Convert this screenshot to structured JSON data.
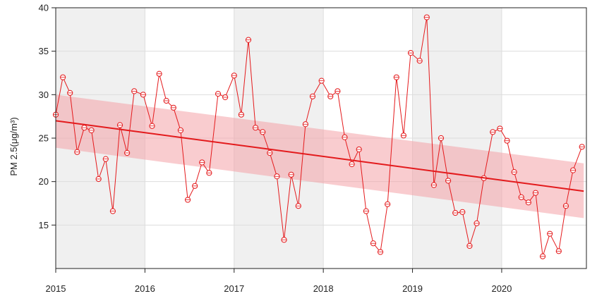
{
  "chart_data": {
    "type": "line",
    "ylabel": "PM 2.5(μg/m³)",
    "xlim": [
      2015.0,
      2020.95
    ],
    "ylim": [
      10,
      40
    ],
    "xticks": [
      "2015",
      "2016",
      "2017",
      "2018",
      "2019",
      "2020"
    ],
    "yticks": [
      "15",
      "20",
      "25",
      "30",
      "35",
      "40"
    ],
    "grid": true,
    "shaded_year_bands": [
      [
        2015,
        2016
      ],
      [
        2017,
        2018
      ],
      [
        2019,
        2020
      ]
    ],
    "series": [
      {
        "values": [
          [
            2015.0,
            27.7
          ],
          [
            2015.08,
            32.0
          ],
          [
            2015.16,
            30.2
          ],
          [
            2015.24,
            23.4
          ],
          [
            2015.32,
            26.2
          ],
          [
            2015.4,
            25.9
          ],
          [
            2015.48,
            20.3
          ],
          [
            2015.56,
            22.6
          ],
          [
            2015.64,
            16.6
          ],
          [
            2015.72,
            26.5
          ],
          [
            2015.8,
            23.3
          ],
          [
            2015.88,
            30.4
          ],
          [
            2015.98,
            30.0
          ],
          [
            2016.08,
            26.4
          ],
          [
            2016.16,
            32.4
          ],
          [
            2016.24,
            29.3
          ],
          [
            2016.32,
            28.5
          ],
          [
            2016.4,
            25.9
          ],
          [
            2016.48,
            17.9
          ],
          [
            2016.56,
            19.5
          ],
          [
            2016.64,
            22.2
          ],
          [
            2016.72,
            21.0
          ],
          [
            2016.82,
            30.1
          ],
          [
            2016.9,
            29.7
          ],
          [
            2017.0,
            32.2
          ],
          [
            2017.08,
            27.7
          ],
          [
            2017.16,
            36.3
          ],
          [
            2017.24,
            26.2
          ],
          [
            2017.32,
            25.7
          ],
          [
            2017.4,
            23.3
          ],
          [
            2017.48,
            20.6
          ],
          [
            2017.56,
            13.3
          ],
          [
            2017.64,
            20.8
          ],
          [
            2017.72,
            17.2
          ],
          [
            2017.8,
            26.6
          ],
          [
            2017.88,
            29.8
          ],
          [
            2017.98,
            31.6
          ],
          [
            2018.08,
            29.8
          ],
          [
            2018.16,
            30.4
          ],
          [
            2018.24,
            25.1
          ],
          [
            2018.32,
            22.0
          ],
          [
            2018.4,
            23.7
          ],
          [
            2018.48,
            16.6
          ],
          [
            2018.56,
            12.9
          ],
          [
            2018.64,
            11.9
          ],
          [
            2018.72,
            17.4
          ],
          [
            2018.82,
            32.0
          ],
          [
            2018.9,
            25.3
          ],
          [
            2018.98,
            34.8
          ],
          [
            2019.08,
            33.9
          ],
          [
            2019.16,
            38.9
          ],
          [
            2019.24,
            19.6
          ],
          [
            2019.32,
            25.0
          ],
          [
            2019.4,
            20.1
          ],
          [
            2019.48,
            16.4
          ],
          [
            2019.56,
            16.5
          ],
          [
            2019.64,
            12.6
          ],
          [
            2019.72,
            15.2
          ],
          [
            2019.8,
            20.4
          ],
          [
            2019.9,
            25.7
          ],
          [
            2019.98,
            26.1
          ],
          [
            2020.06,
            24.7
          ],
          [
            2020.14,
            21.1
          ],
          [
            2020.22,
            18.2
          ],
          [
            2020.3,
            17.6
          ],
          [
            2020.38,
            18.7
          ],
          [
            2020.46,
            11.4
          ],
          [
            2020.54,
            14.0
          ],
          [
            2020.64,
            12.0
          ],
          [
            2020.72,
            17.2
          ],
          [
            2020.8,
            21.3
          ],
          [
            2020.9,
            24.0
          ]
        ]
      }
    ],
    "trend": {
      "x": [
        2015.0,
        2020.92
      ],
      "fit": [
        27.0,
        18.9
      ],
      "upper": [
        30.0,
        22.1
      ],
      "lower": [
        23.9,
        15.8
      ]
    },
    "colors": {
      "series": "#e41a1c",
      "trend": "#e31a1c",
      "band": "#f4a3a8",
      "shade": "#f0f0f0",
      "grid": "#dddddd",
      "axis": "#222222"
    }
  }
}
